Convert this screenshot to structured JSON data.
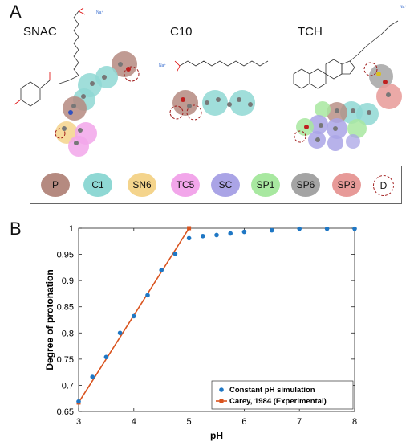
{
  "panel_a": {
    "letter": "A",
    "molecules": [
      {
        "name": "SNAC",
        "ion": "Na⁺"
      },
      {
        "name": "C10",
        "ion": "Na⁺"
      },
      {
        "name": "TCH",
        "ion": "Na⁺"
      }
    ],
    "legend": [
      {
        "label": "P",
        "color": "#b58a80"
      },
      {
        "label": "C1",
        "color": "#8fd8d4"
      },
      {
        "label": "SN6",
        "color": "#f4d48c"
      },
      {
        "label": "TC5",
        "color": "#f2a6ea"
      },
      {
        "label": "SC",
        "color": "#aaa4e6"
      },
      {
        "label": "SP1",
        "color": "#a8e8a0"
      },
      {
        "label": "SP6",
        "color": "#a4a4a4"
      },
      {
        "label": "SP3",
        "color": "#e79a98"
      },
      {
        "label": "D",
        "color": "#ffffff"
      }
    ]
  },
  "panel_b": {
    "letter": "B"
  },
  "chart_data": {
    "type": "line",
    "xlabel": "pH",
    "ylabel": "Degree of protonation",
    "xlim": [
      3,
      8
    ],
    "ylim": [
      0.65,
      1
    ],
    "xticks": [
      "3",
      "4",
      "5",
      "6",
      "7",
      "8"
    ],
    "yticks": [
      "0.65",
      "0.7",
      "0.75",
      "0.8",
      "0.85",
      "0.9",
      "0.95",
      "1"
    ],
    "legend_position": "bottom-right",
    "series": [
      {
        "name": "Constant pH simulation",
        "style": "scatter",
        "color": "#1f77c4",
        "x": [
          3.0,
          3.25,
          3.5,
          3.75,
          4.0,
          4.25,
          4.5,
          4.75,
          5.0,
          5.25,
          5.5,
          5.75,
          6.0,
          6.5,
          7.0,
          7.5,
          8.0
        ],
        "y": [
          0.669,
          0.716,
          0.754,
          0.8,
          0.832,
          0.872,
          0.92,
          0.951,
          0.981,
          0.985,
          0.987,
          0.99,
          0.993,
          0.996,
          0.999,
          0.999,
          0.999
        ]
      },
      {
        "name": "Carey, 1984 (Experimental)",
        "style": "line",
        "color": "#d9531e",
        "x": [
          3.0,
          5.0
        ],
        "y": [
          0.667,
          1.0
        ]
      }
    ]
  }
}
